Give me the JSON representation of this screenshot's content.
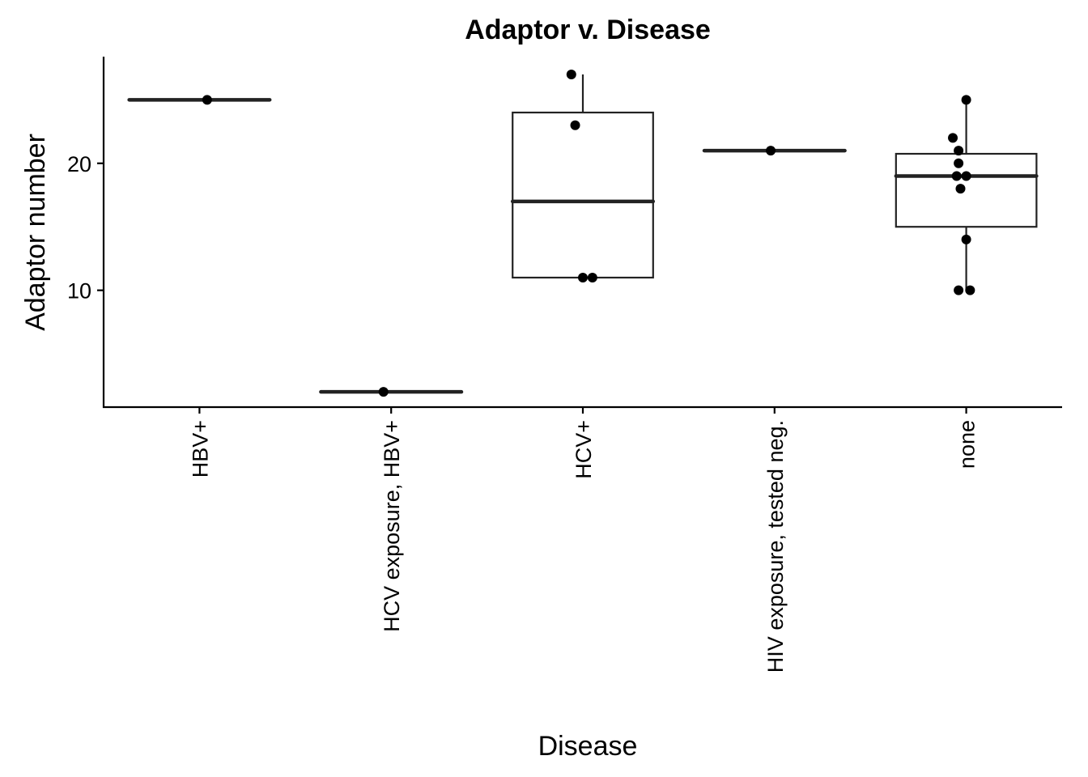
{
  "chart_data": {
    "type": "box",
    "title": "Adaptor v. Disease",
    "xlabel": "Disease",
    "ylabel": "Adaptor number",
    "ylim": [
      0.8,
      28.4
    ],
    "yticks": [
      10,
      20
    ],
    "categories": [
      "HBV+",
      "HCV exposure, HBV+",
      "HCV+",
      "HIV exposure, tested neg.",
      "none"
    ],
    "boxes": [
      {
        "category": "HBV+",
        "min": 25,
        "q1": 25,
        "median": 25,
        "q3": 25,
        "max": 25
      },
      {
        "category": "HCV exposure, HBV+",
        "min": 2,
        "q1": 2,
        "median": 2,
        "q3": 2,
        "max": 2
      },
      {
        "category": "HCV+",
        "min": 11,
        "q1": 11,
        "median": 17,
        "q3": 24,
        "max": 27
      },
      {
        "category": "HIV exposure, tested neg.",
        "min": 21,
        "q1": 21,
        "median": 21,
        "q3": 21,
        "max": 21
      },
      {
        "category": "none",
        "min": 10,
        "q1": 15,
        "median": 19,
        "q3": 20.75,
        "max": 25
      }
    ],
    "points": [
      {
        "category": "HBV+",
        "values": [
          25
        ],
        "jitter": [
          0.04
        ]
      },
      {
        "category": "HCV exposure, HBV+",
        "values": [
          2
        ],
        "jitter": [
          -0.04
        ]
      },
      {
        "category": "HCV+",
        "values": [
          27,
          23,
          11,
          11
        ],
        "jitter": [
          -0.06,
          -0.04,
          0.0,
          0.05
        ]
      },
      {
        "category": "HIV exposure, tested neg.",
        "values": [
          21
        ],
        "jitter": [
          -0.02
        ]
      },
      {
        "category": "none",
        "values": [
          25,
          22,
          21,
          20,
          19,
          19,
          18,
          14,
          10,
          10
        ],
        "jitter": [
          0.0,
          -0.07,
          -0.04,
          -0.04,
          -0.05,
          0.0,
          -0.03,
          0.0,
          -0.04,
          0.02
        ]
      }
    ],
    "grid": false,
    "legend": "none"
  }
}
